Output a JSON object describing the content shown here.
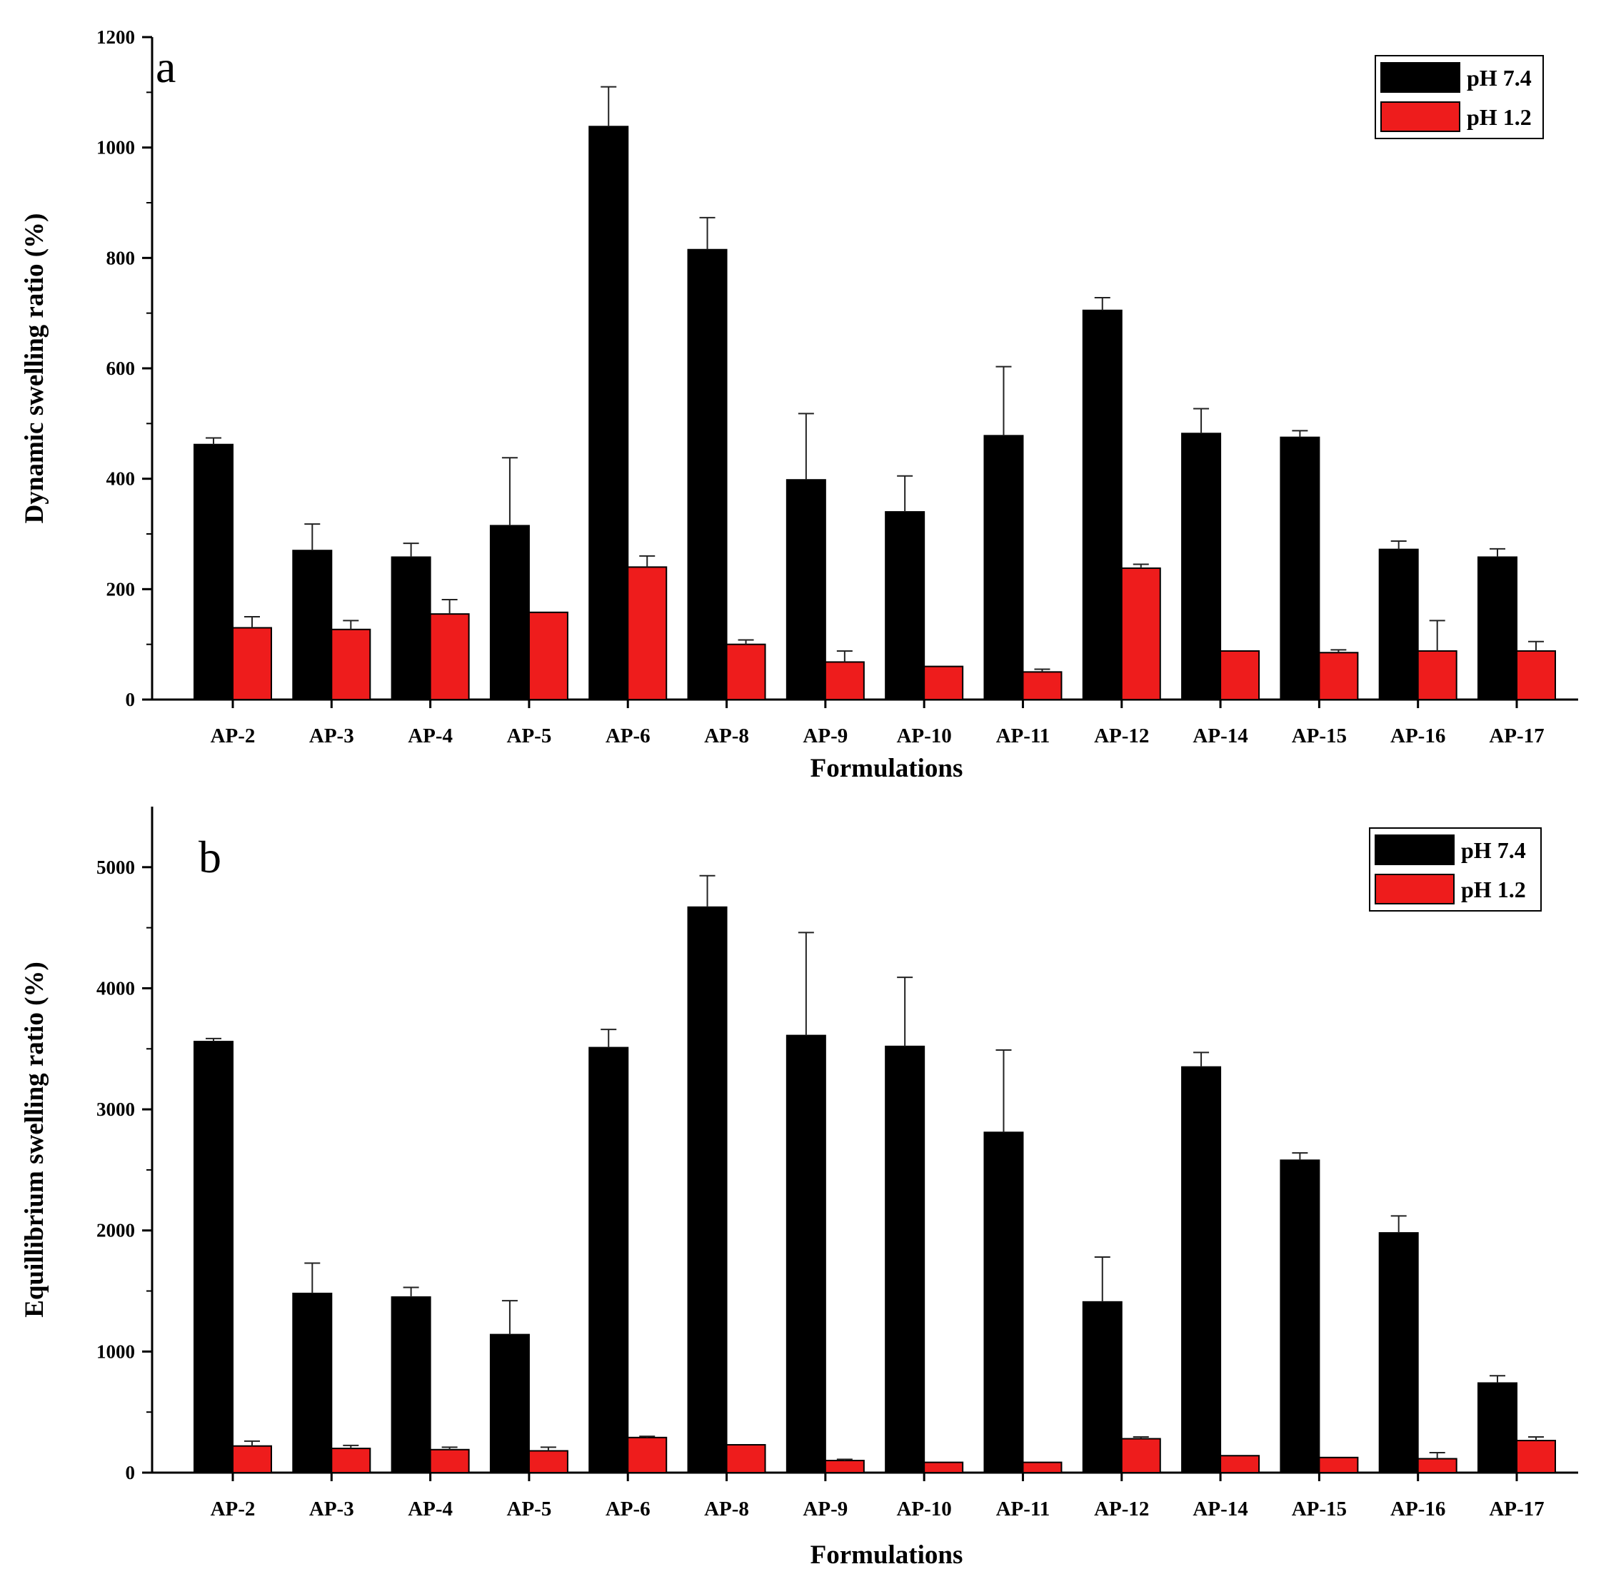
{
  "chart_data": [
    {
      "type": "bar",
      "panel": "a",
      "xlabel": "Formulations",
      "ylabel": "Dynamic swelling ratio (%)",
      "ylim": [
        0,
        1200
      ],
      "yticks": [
        0,
        200,
        400,
        600,
        800,
        1000,
        1200
      ],
      "legend_position": "top-right",
      "categories": [
        "AP-2",
        "AP-3",
        "AP-4",
        "AP-5",
        "AP-6",
        "AP-8",
        "AP-9",
        "AP-10",
        "AP-11",
        "AP-12",
        "AP-14",
        "AP-15",
        "AP-16",
        "AP-17"
      ],
      "series": [
        {
          "name": "pH 7.4",
          "color": "#000000",
          "values": [
            462,
            270,
            258,
            315,
            1038,
            815,
            398,
            340,
            478,
            705,
            482,
            475,
            272,
            258
          ],
          "errors": [
            12,
            48,
            25,
            123,
            72,
            58,
            120,
            65,
            125,
            23,
            45,
            12,
            15,
            15
          ]
        },
        {
          "name": "pH 1.2",
          "color": "#ee1c1c",
          "values": [
            130,
            127,
            155,
            158,
            240,
            100,
            68,
            60,
            50,
            238,
            88,
            85,
            88,
            88
          ],
          "errors": [
            20,
            16,
            26,
            0,
            20,
            8,
            20,
            0,
            5,
            7,
            0,
            5,
            55,
            17
          ]
        }
      ]
    },
    {
      "type": "bar",
      "panel": "b",
      "xlabel": "Formulations",
      "ylabel": "Equillibrium swelling ratio (%)",
      "ylim": [
        0,
        5500
      ],
      "yticks": [
        0,
        1000,
        2000,
        3000,
        4000,
        5000
      ],
      "legend_position": "top-right",
      "categories": [
        "AP-2",
        "AP-3",
        "AP-4",
        "AP-5",
        "AP-6",
        "AP-8",
        "AP-9",
        "AP-10",
        "AP-11",
        "AP-12",
        "AP-14",
        "AP-15",
        "AP-16",
        "AP-17"
      ],
      "series": [
        {
          "name": "pH 7.4",
          "color": "#000000",
          "values": [
            3560,
            1480,
            1450,
            1140,
            3510,
            4670,
            3610,
            3520,
            2810,
            1410,
            3350,
            2580,
            1980,
            740
          ],
          "errors": [
            25,
            250,
            80,
            280,
            150,
            260,
            850,
            570,
            680,
            370,
            120,
            60,
            140,
            60
          ]
        },
        {
          "name": "pH 1.2",
          "color": "#ee1c1c",
          "values": [
            220,
            200,
            190,
            180,
            290,
            230,
            100,
            85,
            85,
            280,
            140,
            125,
            115,
            265
          ],
          "errors": [
            40,
            25,
            20,
            30,
            10,
            0,
            10,
            0,
            0,
            15,
            0,
            0,
            50,
            30
          ]
        }
      ]
    }
  ]
}
